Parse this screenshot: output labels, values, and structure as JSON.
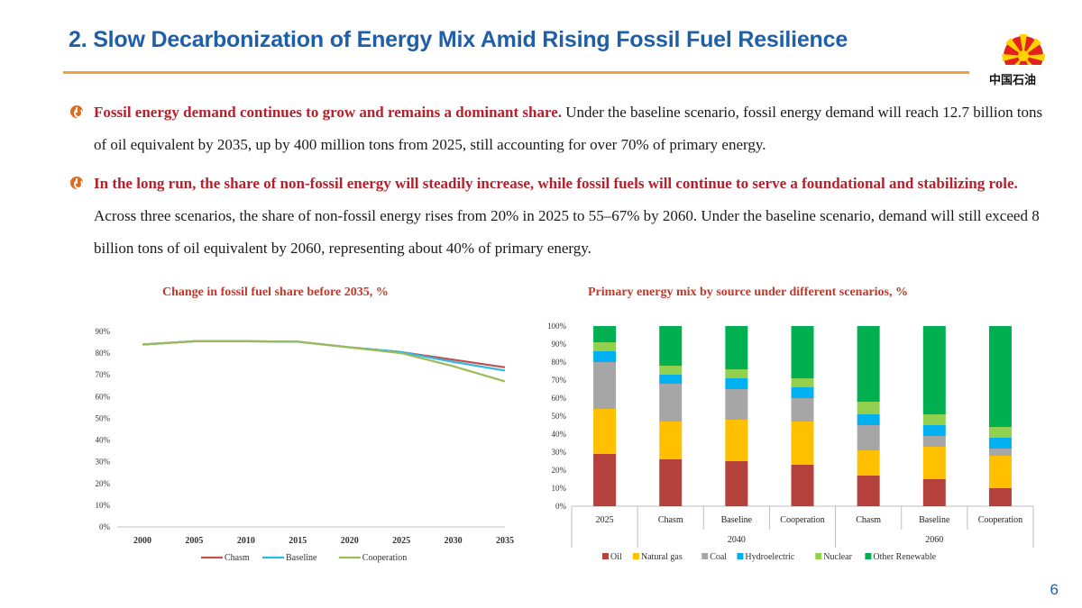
{
  "header": {
    "title": "2. Slow Decarbonization of Energy Mix Amid Rising Fossil Fuel Resilience",
    "logo_text": "中国石油"
  },
  "colors": {
    "title": "#1f5fa8",
    "accent_rule": "#f0a03c",
    "lead_text": "#b5202a",
    "bullet": "#e06a1e"
  },
  "bullets": [
    {
      "lead": "Fossil energy demand continues to grow and remains a dominant share.",
      "body": " Under the baseline scenario, fossil energy demand will reach 12.7 billion tons of oil equivalent by 2035, up by 400 million tons from 2025, still accounting for over 70% of primary energy."
    },
    {
      "lead": "In the long run, the share of non-fossil energy will steadily increase, while fossil fuels will continue to serve a foundational and stabilizing role.",
      "body": " Across three scenarios, the share of non-fossil energy rises from 20% in 2025 to 55–67% by 2060. Under the baseline scenario, demand will still exceed 8 billion tons of oil equivalent by 2060, representing about 40% of primary energy."
    }
  ],
  "page_number": "6",
  "chart_data": [
    {
      "type": "line",
      "title": "Change in fossil fuel share before 2035, %",
      "x": [
        "2000",
        "2005",
        "2010",
        "2015",
        "2020",
        "2025",
        "2030",
        "2035"
      ],
      "yticks": [
        "0%",
        "10%",
        "20%",
        "30%",
        "40%",
        "50%",
        "60%",
        "70%",
        "80%",
        "90%"
      ],
      "ylim": [
        0,
        90
      ],
      "series": [
        {
          "name": "Chasm",
          "color": "#c0504d",
          "values": [
            84,
            85.5,
            85.5,
            85.3,
            82.7,
            80.5,
            77,
            73.5
          ]
        },
        {
          "name": "Baseline",
          "color": "#2eb6e6",
          "values": [
            84,
            85.5,
            85.5,
            85.3,
            82.7,
            80.5,
            76,
            72
          ]
        },
        {
          "name": "Cooperation",
          "color": "#9bbb59",
          "values": [
            84,
            85.5,
            85.5,
            85.3,
            82.7,
            80,
            74,
            67
          ]
        }
      ]
    },
    {
      "type": "bar",
      "stacked": true,
      "title": "Primary energy mix by source under different scenarios, %",
      "categories": [
        "2025",
        "Chasm",
        "Baseline",
        "Cooperation",
        "Chasm",
        "Baseline",
        "Cooperation"
      ],
      "groups": [
        {
          "label": "2040",
          "start": 1,
          "end": 3
        },
        {
          "label": "2060",
          "start": 4,
          "end": 6
        }
      ],
      "yticks": [
        "0%",
        "10%",
        "20%",
        "30%",
        "40%",
        "50%",
        "60%",
        "70%",
        "80%",
        "90%",
        "100%"
      ],
      "ylim": [
        0,
        100
      ],
      "series": [
        {
          "name": "Oil",
          "color": "#b5413d",
          "values": [
            29,
            26,
            25,
            23,
            17,
            15,
            10
          ]
        },
        {
          "name": "Natural gas",
          "color": "#ffc000",
          "values": [
            25,
            21,
            23,
            24,
            14,
            18,
            18
          ]
        },
        {
          "name": "Coal",
          "color": "#a6a6a6",
          "values": [
            26,
            21,
            17,
            13,
            14,
            6,
            4
          ]
        },
        {
          "name": "Hydroelectric",
          "color": "#00b0f0",
          "values": [
            6,
            5,
            6,
            6,
            6,
            6,
            6
          ]
        },
        {
          "name": "Nuclear",
          "color": "#92d050",
          "values": [
            5,
            5,
            5,
            5,
            7,
            6,
            6
          ]
        },
        {
          "name": "Other Renewable",
          "color": "#00b050",
          "values": [
            9,
            22,
            24,
            29,
            42,
            49,
            56
          ]
        }
      ]
    }
  ]
}
